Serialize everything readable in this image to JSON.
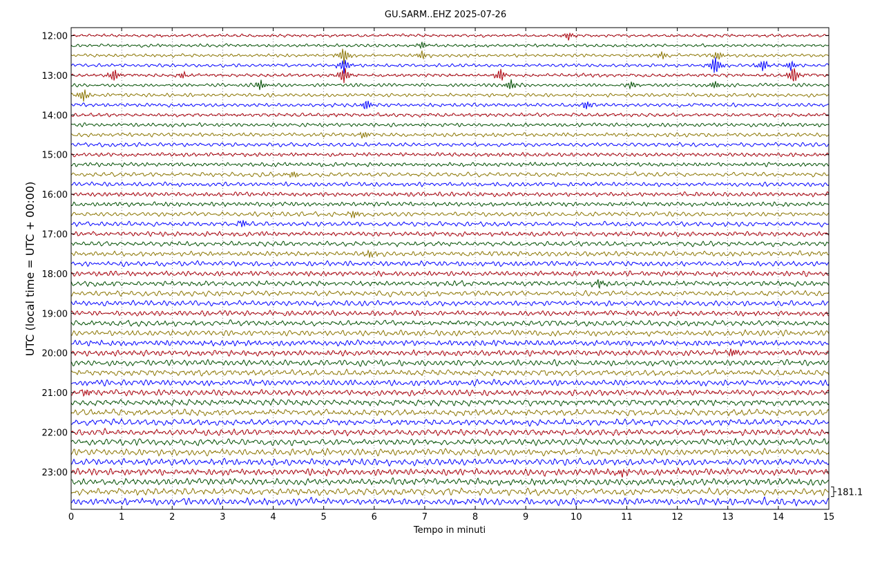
{
  "chart_data": {
    "type": "line",
    "title": "GU.SARM..EHZ 2025-07-26",
    "xlabel": "Tempo in minuti",
    "ylabel": "UTC (local time = UTC + 00:00)",
    "xlim": [
      0,
      15
    ],
    "x_ticks": [
      "0",
      "1",
      "2",
      "3",
      "4",
      "5",
      "6",
      "7",
      "8",
      "9",
      "10",
      "11",
      "12",
      "13",
      "14",
      "15"
    ],
    "y_ticks": [
      "12:00",
      "13:00",
      "14:00",
      "15:00",
      "16:00",
      "17:00",
      "18:00",
      "19:00",
      "20:00",
      "21:00",
      "22:00",
      "23:00"
    ],
    "trace_start": "12:00",
    "trace_interval_minutes": 15,
    "trace_count": 48,
    "trace_colors": [
      "#b0000c",
      "#004d00",
      "#8a7400",
      "#0000ff"
    ],
    "scale_label": "181.1",
    "grid": true,
    "events": [
      {
        "trace": 0,
        "minute": 9.85,
        "amp": 1.4
      },
      {
        "trace": 1,
        "minute": 6.95,
        "amp": 1.2
      },
      {
        "trace": 2,
        "minute": 5.4,
        "amp": 2.8
      },
      {
        "trace": 2,
        "minute": 6.95,
        "amp": 1.5
      },
      {
        "trace": 2,
        "minute": 11.7,
        "amp": 1.2
      },
      {
        "trace": 2,
        "minute": 12.8,
        "amp": 1.5
      },
      {
        "trace": 3,
        "minute": 5.4,
        "amp": 2.5
      },
      {
        "trace": 3,
        "minute": 12.75,
        "amp": 3.5
      },
      {
        "trace": 3,
        "minute": 13.7,
        "amp": 2.0
      },
      {
        "trace": 3,
        "minute": 14.25,
        "amp": 1.6
      },
      {
        "trace": 4,
        "minute": 0.85,
        "amp": 2.2
      },
      {
        "trace": 4,
        "minute": 2.2,
        "amp": 1.1
      },
      {
        "trace": 4,
        "minute": 5.4,
        "amp": 3.0
      },
      {
        "trace": 4,
        "minute": 8.5,
        "amp": 2.3
      },
      {
        "trace": 4,
        "minute": 14.3,
        "amp": 3.2
      },
      {
        "trace": 5,
        "minute": 3.75,
        "amp": 1.8
      },
      {
        "trace": 5,
        "minute": 8.7,
        "amp": 1.9
      },
      {
        "trace": 5,
        "minute": 11.1,
        "amp": 1.2
      },
      {
        "trace": 5,
        "minute": 12.75,
        "amp": 1.4
      },
      {
        "trace": 6,
        "minute": 0.25,
        "amp": 2.2
      },
      {
        "trace": 7,
        "minute": 5.85,
        "amp": 1.8
      },
      {
        "trace": 7,
        "minute": 10.2,
        "amp": 1.6
      },
      {
        "trace": 10,
        "minute": 5.8,
        "amp": 1.3
      },
      {
        "trace": 14,
        "minute": 4.4,
        "amp": 1.1
      },
      {
        "trace": 18,
        "minute": 5.6,
        "amp": 1.4
      },
      {
        "trace": 19,
        "minute": 3.4,
        "amp": 1.2
      },
      {
        "trace": 22,
        "minute": 5.9,
        "amp": 1.2
      },
      {
        "trace": 25,
        "minute": 10.45,
        "amp": 1.4
      },
      {
        "trace": 32,
        "minute": 13.1,
        "amp": 1.3
      },
      {
        "trace": 36,
        "minute": 0.3,
        "amp": 1.2
      },
      {
        "trace": 44,
        "minute": 10.9,
        "amp": 1.1
      }
    ]
  }
}
